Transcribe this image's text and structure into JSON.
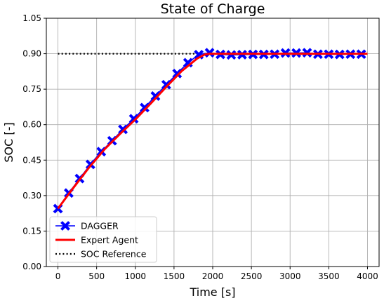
{
  "chart_data": {
    "type": "line",
    "title": "State of Charge",
    "xlabel": "Time [s]",
    "ylabel": "SOC [-]",
    "xlim": [
      -150,
      4150
    ],
    "ylim": [
      0.0,
      1.05
    ],
    "x_ticks": [
      0,
      500,
      1000,
      1500,
      2000,
      2500,
      3000,
      3500,
      4000
    ],
    "x_tick_labels": [
      "0",
      "500",
      "1000",
      "1500",
      "2000",
      "2500",
      "3000",
      "3500",
      "4000"
    ],
    "y_ticks": [
      0.0,
      0.15,
      0.3,
      0.45,
      0.6,
      0.75,
      0.9,
      1.05
    ],
    "y_tick_labels": [
      "0.00",
      "0.15",
      "0.30",
      "0.45",
      "0.60",
      "0.75",
      "0.90",
      "1.05"
    ],
    "grid": true,
    "legend_position": "lower-left",
    "colors": {
      "dagger": "#0000ff",
      "expert": "#ff0000",
      "reference": "#000000",
      "grid": "#b0b0b0"
    },
    "series": [
      {
        "name": "DAGGER",
        "style": "line-with-x-markers",
        "color": "#0000ff",
        "x": [
          0,
          140,
          280,
          420,
          560,
          700,
          840,
          980,
          1120,
          1260,
          1400,
          1540,
          1680,
          1820,
          1960,
          2100,
          2240,
          2380,
          2520,
          2660,
          2800,
          2940,
          3080,
          3220,
          3360,
          3500,
          3640,
          3780,
          3920
        ],
        "y": [
          0.245,
          0.311,
          0.372,
          0.432,
          0.486,
          0.532,
          0.58,
          0.625,
          0.672,
          0.721,
          0.769,
          0.816,
          0.862,
          0.896,
          0.904,
          0.897,
          0.895,
          0.896,
          0.897,
          0.897,
          0.898,
          0.903,
          0.903,
          0.904,
          0.898,
          0.898,
          0.897,
          0.898,
          0.898
        ]
      },
      {
        "name": "Expert Agent",
        "style": "solid",
        "color": "#ff0000",
        "x": [
          0,
          200,
          400,
          600,
          800,
          1000,
          1200,
          1400,
          1600,
          1800,
          1900,
          1960,
          2050,
          2200,
          2400,
          2600,
          2800,
          3000,
          3200,
          3400,
          3600,
          3800,
          4000
        ],
        "y": [
          0.245,
          0.333,
          0.418,
          0.495,
          0.56,
          0.622,
          0.69,
          0.76,
          0.827,
          0.88,
          0.897,
          0.9,
          0.9,
          0.9,
          0.9,
          0.9,
          0.9,
          0.9,
          0.9,
          0.9,
          0.9,
          0.9,
          0.9
        ]
      },
      {
        "name": "SOC Reference",
        "style": "dotted",
        "color": "#000000",
        "x": [
          0,
          4000
        ],
        "y": [
          0.9,
          0.9
        ]
      }
    ]
  }
}
